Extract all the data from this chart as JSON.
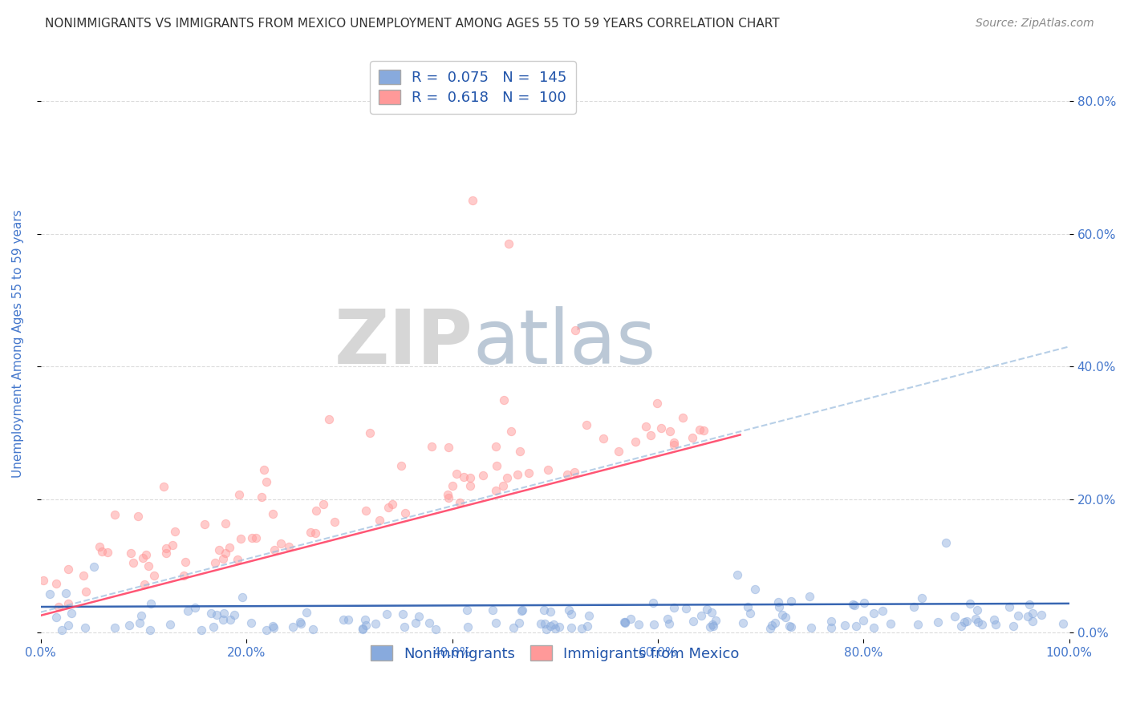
{
  "title": "NONIMMIGRANTS VS IMMIGRANTS FROM MEXICO UNEMPLOYMENT AMONG AGES 55 TO 59 YEARS CORRELATION CHART",
  "source": "Source: ZipAtlas.com",
  "ylabel": "Unemployment Among Ages 55 to 59 years",
  "xlabel": "",
  "xlim": [
    0.0,
    1.0
  ],
  "ylim": [
    -0.01,
    0.88
  ],
  "yticks": [
    0.0,
    0.2,
    0.4,
    0.6,
    0.8
  ],
  "xticks": [
    0.0,
    0.2,
    0.4,
    0.6,
    0.8,
    1.0
  ],
  "xtick_labels": [
    "0.0%",
    "20.0%",
    "40.0%",
    "60.0%",
    "80.0%",
    "100.0%"
  ],
  "ytick_labels": [
    "",
    "",
    "",
    "",
    ""
  ],
  "right_ytick_labels": [
    "0.0%",
    "20.0%",
    "40.0%",
    "60.0%",
    "80.0%"
  ],
  "nonimmigrant_R": 0.075,
  "nonimmigrant_N": 145,
  "immigrant_R": 0.618,
  "immigrant_N": 100,
  "blue_color": "#88AADD",
  "pink_color": "#FF9999",
  "blue_dot_edge": "#88AADD",
  "pink_dot_edge": "#FF9999",
  "blue_line_color": "#2255AA",
  "pink_line_color": "#FF4466",
  "blue_dash_color": "#99BBDD",
  "axis_color": "#4477CC",
  "title_color": "#333333",
  "watermark_zip_color": "#CCCCCC",
  "watermark_atlas_color": "#AABBCC",
  "background_color": "#FFFFFF",
  "grid_color": "#CCCCCC",
  "legend_text_color": "#2255AA"
}
